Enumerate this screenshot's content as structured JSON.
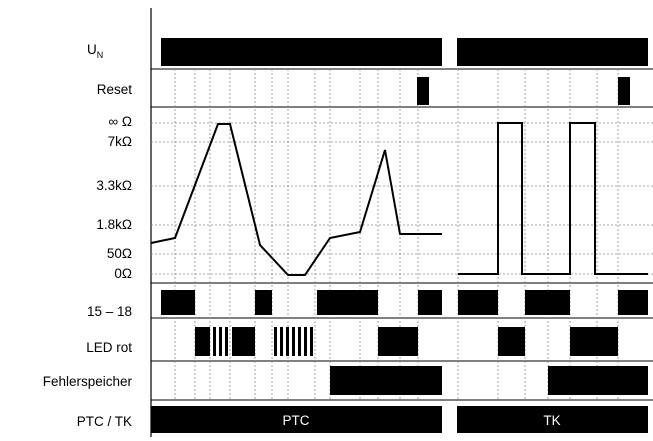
{
  "rows": [
    {
      "id": "un",
      "label_main": "U",
      "label_sub": "N"
    },
    {
      "id": "reset",
      "label": "Reset"
    },
    {
      "id": "resistance",
      "ticks": [
        "∞ Ω",
        "7kΩ",
        "3.3kΩ",
        "1.8kΩ",
        "50Ω",
        "0Ω"
      ]
    },
    {
      "id": "relay",
      "label": "15 – 18"
    },
    {
      "id": "led",
      "label": "LED rot"
    },
    {
      "id": "memory",
      "label": "Fehlerspeicher"
    },
    {
      "id": "mode",
      "label": "PTC / TK",
      "segments": [
        "PTC",
        "TK"
      ]
    }
  ],
  "resistance_levels": [
    "∞",
    "7k",
    "3.3k",
    "1.8k",
    "50",
    "0"
  ],
  "ptc_curve": [
    {
      "t": 0,
      "level": "1.8k-"
    },
    {
      "t": 1,
      "level": "1.8k-"
    },
    {
      "t": 2,
      "level": "∞"
    },
    {
      "t": 3,
      "level": "∞"
    },
    {
      "t": 4,
      "level": "50+"
    },
    {
      "t": 5,
      "level": "0"
    },
    {
      "t": 6,
      "level": "0"
    },
    {
      "t": 7,
      "level": "1.8k-"
    },
    {
      "t": 8,
      "level": "1.8k-"
    },
    {
      "t": 9,
      "level": "3.3k+"
    },
    {
      "t": 10,
      "level": "1.8k-"
    },
    {
      "t": 11,
      "level": "1.8k-"
    }
  ],
  "tk_curve": [
    {
      "t": 0,
      "level": "0"
    },
    {
      "t": 1,
      "level": "∞"
    },
    {
      "t": 2,
      "level": "0"
    },
    {
      "t": 3,
      "level": "∞"
    },
    {
      "t": 4,
      "level": "0"
    }
  ]
}
